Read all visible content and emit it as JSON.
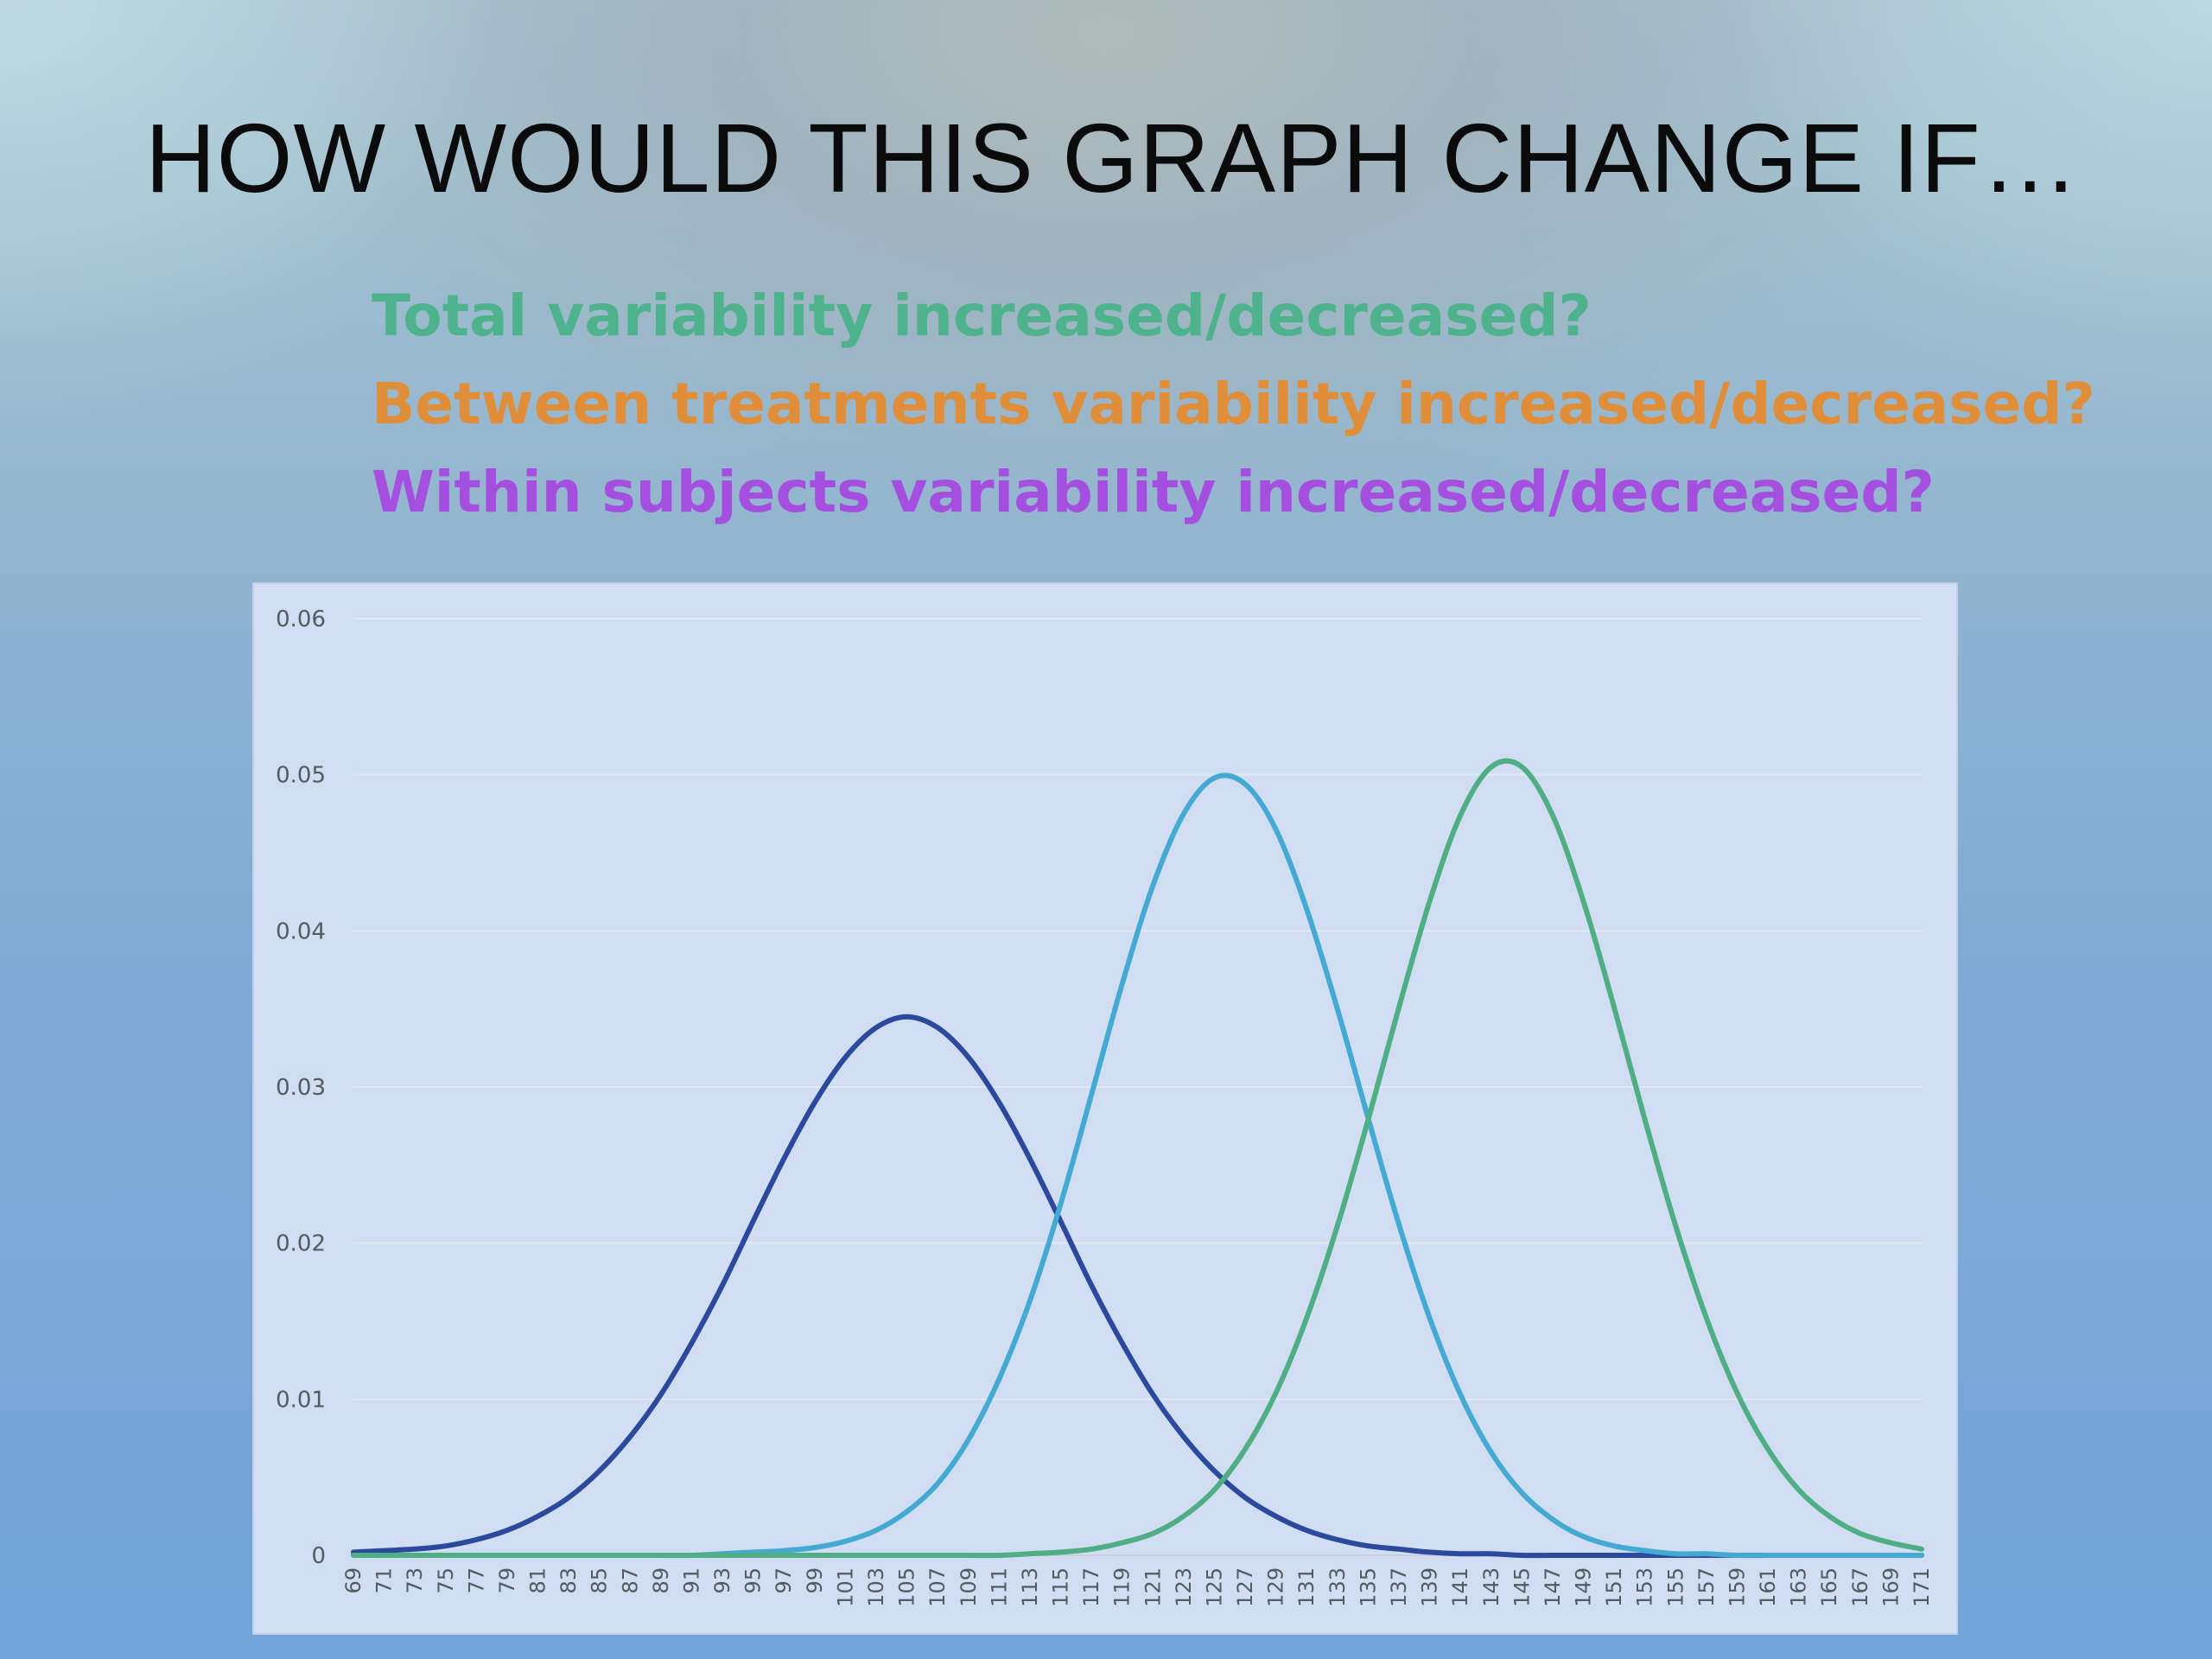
{
  "slide": {
    "title": "HOW WOULD THIS GRAPH CHANGE IF…",
    "questions": [
      {
        "text": "Total variability increased/decreased?",
        "color": "#4eb38c"
      },
      {
        "text": "Between treatments variability increased/decreased?",
        "color": "#e08e3a"
      },
      {
        "text": "Within subjects variability increased/decreased?",
        "color": "#a54fe0"
      }
    ]
  },
  "chart_data": {
    "type": "line",
    "title": "",
    "xlabel": "",
    "ylabel": "",
    "x": [
      69,
      71,
      73,
      75,
      77,
      79,
      81,
      83,
      85,
      87,
      89,
      91,
      93,
      95,
      97,
      99,
      101,
      103,
      105,
      107,
      109,
      111,
      113,
      115,
      117,
      119,
      121,
      123,
      125,
      127,
      129,
      131,
      133,
      135,
      137,
      139,
      141,
      143,
      145,
      147,
      149,
      151,
      153,
      155,
      157,
      159,
      161,
      163,
      165,
      167,
      169,
      171
    ],
    "ylim": [
      0,
      0.06
    ],
    "yticks": [
      0,
      0.01,
      0.02,
      0.03,
      0.04,
      0.05,
      0.06
    ],
    "ytick_labels": [
      "0",
      "0.01",
      "0.02",
      "0.03",
      "0.04",
      "0.05",
      "0.06"
    ],
    "grid": true,
    "legend": "none",
    "series": [
      {
        "color": "#2b4a9e",
        "values": [
          0.0002,
          0.0003,
          0.0004,
          0.0006,
          0.001,
          0.0016,
          0.0025,
          0.0037,
          0.0054,
          0.0076,
          0.0103,
          0.0136,
          0.0173,
          0.0214,
          0.0254,
          0.029,
          0.0319,
          0.0338,
          0.0345,
          0.0338,
          0.0319,
          0.029,
          0.0254,
          0.0214,
          0.0173,
          0.0136,
          0.0103,
          0.0076,
          0.0054,
          0.0037,
          0.0025,
          0.0016,
          0.001,
          0.0006,
          0.0004,
          0.0002,
          0.0001,
          0.0001,
          0.0,
          0.0,
          0.0,
          0.0,
          0.0,
          0.0,
          0.0,
          0.0,
          0.0,
          0.0,
          0.0,
          0.0,
          0.0,
          0.0
        ]
      },
      {
        "color": "#44aad4",
        "values": [
          0.0,
          0.0,
          0.0,
          0.0,
          0.0,
          0.0,
          0.0,
          0.0,
          0.0,
          0.0,
          0.0,
          0.0,
          0.0001,
          0.0002,
          0.0003,
          0.0005,
          0.0009,
          0.0016,
          0.0028,
          0.0046,
          0.0074,
          0.0113,
          0.0163,
          0.0225,
          0.0295,
          0.0366,
          0.0429,
          0.0475,
          0.0498,
          0.0494,
          0.0465,
          0.0414,
          0.035,
          0.028,
          0.0212,
          0.0152,
          0.0103,
          0.0066,
          0.004,
          0.0023,
          0.0012,
          0.0006,
          0.0003,
          0.0001,
          0.0001,
          0.0,
          0.0,
          0.0,
          0.0,
          0.0,
          0.0,
          0.0
        ]
      },
      {
        "color": "#4fae84",
        "values": [
          0.0,
          0.0,
          0.0,
          0.0,
          0.0,
          0.0,
          0.0,
          0.0,
          0.0,
          0.0,
          0.0,
          0.0,
          0.0,
          0.0,
          0.0,
          0.0,
          0.0,
          0.0,
          0.0,
          0.0,
          0.0,
          0.0,
          0.0001,
          0.0002,
          0.0004,
          0.0008,
          0.0014,
          0.0025,
          0.0042,
          0.0068,
          0.0104,
          0.0152,
          0.0211,
          0.0279,
          0.0351,
          0.0419,
          0.0474,
          0.0505,
          0.0505,
          0.0474,
          0.0419,
          0.0351,
          0.0279,
          0.0211,
          0.0152,
          0.0104,
          0.0068,
          0.0042,
          0.0025,
          0.0014,
          0.0008,
          0.0004
        ]
      }
    ]
  }
}
